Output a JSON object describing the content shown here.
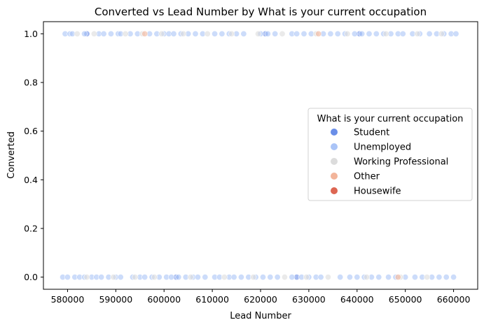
{
  "chart_data": {
    "type": "scatter",
    "title": "Converted vs Lead Number by What is your current occupation",
    "xlabel": "Lead Number",
    "ylabel": "Converted",
    "xlim": [
      575000,
      665000
    ],
    "ylim": [
      -0.05,
      1.05
    ],
    "xticks": [
      580000,
      590000,
      600000,
      610000,
      620000,
      630000,
      640000,
      650000,
      660000
    ],
    "yticks": [
      0.0,
      0.2,
      0.4,
      0.6,
      0.8,
      1.0
    ],
    "xtick_labels": [
      "580000",
      "590000",
      "600000",
      "610000",
      "620000",
      "630000",
      "640000",
      "650000",
      "660000"
    ],
    "ytick_labels": [
      "0.0",
      "0.2",
      "0.4",
      "0.6",
      "0.8",
      "1.0"
    ],
    "grid": false,
    "legend": {
      "title": "What is your current occupation",
      "placement": "center-right"
    },
    "series": [
      {
        "name": "Student",
        "color": "#6a8ee8",
        "points": [
          [
            584000,
            1
          ],
          [
            602500,
            0
          ],
          [
            627500,
            0
          ],
          [
            640500,
            1
          ],
          [
            621000,
            1
          ]
        ]
      },
      {
        "name": "Unemployed",
        "color": "#aac4f7",
        "points": [
          [
            579500,
            1
          ],
          [
            580500,
            1
          ],
          [
            581000,
            1
          ],
          [
            583500,
            1
          ],
          [
            586500,
            1
          ],
          [
            587500,
            1
          ],
          [
            589000,
            1
          ],
          [
            590500,
            1
          ],
          [
            591000,
            1
          ],
          [
            593000,
            1
          ],
          [
            594500,
            1
          ],
          [
            597000,
            1
          ],
          [
            598500,
            1
          ],
          [
            600000,
            1
          ],
          [
            601000,
            1
          ],
          [
            602000,
            1
          ],
          [
            603500,
            1
          ],
          [
            605000,
            1
          ],
          [
            606500,
            1
          ],
          [
            608000,
            1
          ],
          [
            610500,
            1
          ],
          [
            612000,
            1
          ],
          [
            613500,
            1
          ],
          [
            615000,
            1
          ],
          [
            616500,
            1
          ],
          [
            620000,
            1
          ],
          [
            621500,
            1
          ],
          [
            623000,
            1
          ],
          [
            626500,
            1
          ],
          [
            627500,
            1
          ],
          [
            629000,
            1
          ],
          [
            630500,
            1
          ],
          [
            633000,
            1
          ],
          [
            634500,
            1
          ],
          [
            636000,
            1
          ],
          [
            637500,
            1
          ],
          [
            639500,
            1
          ],
          [
            641000,
            1
          ],
          [
            642500,
            1
          ],
          [
            644000,
            1
          ],
          [
            645500,
            1
          ],
          [
            647000,
            1
          ],
          [
            648500,
            1
          ],
          [
            649500,
            1
          ],
          [
            651500,
            1
          ],
          [
            653000,
            1
          ],
          [
            655000,
            1
          ],
          [
            656500,
            1
          ],
          [
            658000,
            1
          ],
          [
            659500,
            1
          ],
          [
            660500,
            1
          ],
          [
            579000,
            0
          ],
          [
            580000,
            0
          ],
          [
            581500,
            0
          ],
          [
            582500,
            0
          ],
          [
            583500,
            0
          ],
          [
            585000,
            0
          ],
          [
            586000,
            0
          ],
          [
            587000,
            0
          ],
          [
            588500,
            0
          ],
          [
            590000,
            0
          ],
          [
            591000,
            0
          ],
          [
            593500,
            0
          ],
          [
            595000,
            0
          ],
          [
            596000,
            0
          ],
          [
            597500,
            0
          ],
          [
            599000,
            0
          ],
          [
            600500,
            0
          ],
          [
            601500,
            0
          ],
          [
            603000,
            0
          ],
          [
            604500,
            0
          ],
          [
            606000,
            0
          ],
          [
            607000,
            0
          ],
          [
            608500,
            0
          ],
          [
            610500,
            0
          ],
          [
            611500,
            0
          ],
          [
            613500,
            0
          ],
          [
            614500,
            0
          ],
          [
            616000,
            0
          ],
          [
            617500,
            0
          ],
          [
            619000,
            0
          ],
          [
            620500,
            0
          ],
          [
            622000,
            0
          ],
          [
            623500,
            0
          ],
          [
            626500,
            0
          ],
          [
            628500,
            0
          ],
          [
            630000,
            0
          ],
          [
            631500,
            0
          ],
          [
            632500,
            0
          ],
          [
            636500,
            0
          ],
          [
            638500,
            0
          ],
          [
            640000,
            0
          ],
          [
            641500,
            0
          ],
          [
            643000,
            0
          ],
          [
            644500,
            0
          ],
          [
            646500,
            0
          ],
          [
            648000,
            0
          ],
          [
            650000,
            0
          ],
          [
            652000,
            0
          ],
          [
            653500,
            0
          ],
          [
            655500,
            0
          ],
          [
            657000,
            0
          ],
          [
            658500,
            0
          ],
          [
            660000,
            0
          ]
        ]
      },
      {
        "name": "Working Professional",
        "color": "#dcdcdc",
        "points": [
          [
            582000,
            1
          ],
          [
            585500,
            1
          ],
          [
            592000,
            1
          ],
          [
            595500,
            1
          ],
          [
            599500,
            1
          ],
          [
            604000,
            1
          ],
          [
            609000,
            1
          ],
          [
            614000,
            1
          ],
          [
            619500,
            1
          ],
          [
            624500,
            1
          ],
          [
            631500,
            1
          ],
          [
            638000,
            1
          ],
          [
            646000,
            1
          ],
          [
            652500,
            1
          ],
          [
            657500,
            1
          ],
          [
            584000,
            0
          ],
          [
            589500,
            0
          ],
          [
            594000,
            0
          ],
          [
            598000,
            0
          ],
          [
            605500,
            0
          ],
          [
            612500,
            0
          ],
          [
            618500,
            0
          ],
          [
            625000,
            0
          ],
          [
            629500,
            0
          ],
          [
            634000,
            0
          ],
          [
            642000,
            0
          ],
          [
            649000,
            0
          ],
          [
            654500,
            0
          ]
        ]
      },
      {
        "name": "Other",
        "color": "#f2b49a",
        "points": [
          [
            596000,
            1
          ],
          [
            632000,
            1
          ],
          [
            648500,
            0
          ]
        ]
      },
      {
        "name": "Housewife",
        "color": "#dd6652",
        "points": []
      }
    ]
  }
}
